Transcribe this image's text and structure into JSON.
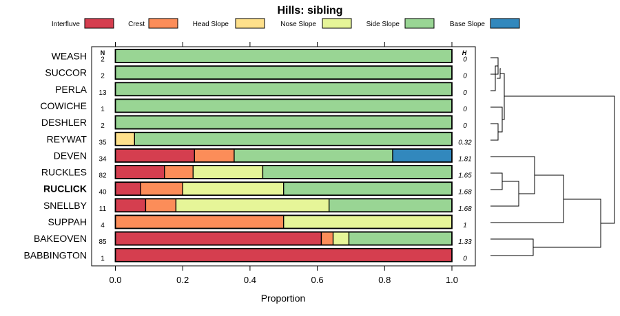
{
  "chart_data": {
    "type": "bar",
    "stacked": true,
    "orientation": "horizontal",
    "title": "Hills: sibling",
    "xlabel": "Proportion",
    "xlim": [
      0,
      1
    ],
    "xticks": [
      "0.0",
      "0.2",
      "0.4",
      "0.6",
      "0.8",
      "1.0"
    ],
    "n_header": "N",
    "h_header": "H",
    "highlight": "RUCLICK",
    "legend": [
      {
        "name": "Interfluve",
        "color": "#d53e4f"
      },
      {
        "name": "Crest",
        "color": "#fc8d59"
      },
      {
        "name": "Head Slope",
        "color": "#fee08b"
      },
      {
        "name": "Nose Slope",
        "color": "#e6f598"
      },
      {
        "name": "Side Slope",
        "color": "#99d594"
      },
      {
        "name": "Base Slope",
        "color": "#3288bd"
      }
    ],
    "categories": [
      "WEASH",
      "SUCCOR",
      "PERLA",
      "COWICHE",
      "DESHLER",
      "REYWAT",
      "DEVEN",
      "RUCKLES",
      "RUCLICK",
      "SNELLBY",
      "SUPPAH",
      "BAKEOVEN",
      "BABBINGTON"
    ],
    "n": [
      "2",
      "2",
      "13",
      "1",
      "2",
      "35",
      "34",
      "82",
      "40",
      "11",
      "4",
      "85",
      "1"
    ],
    "h": [
      "0",
      "0",
      "0",
      "0",
      "0",
      "0.32",
      "1.81",
      "1.65",
      "1.68",
      "1.68",
      "1",
      "1.33",
      "0"
    ],
    "series": [
      {
        "name": "Interfluve",
        "values": [
          0,
          0,
          0,
          0,
          0,
          0,
          0.235,
          0.146,
          0.075,
          0.09,
          0,
          0.612,
          1.0
        ]
      },
      {
        "name": "Crest",
        "values": [
          0,
          0,
          0,
          0,
          0,
          0,
          0.118,
          0.085,
          0.125,
          0.09,
          0.5,
          0.035,
          0
        ]
      },
      {
        "name": "Head Slope",
        "values": [
          0,
          0,
          0,
          0,
          0,
          0.057,
          0,
          0,
          0,
          0,
          0,
          0,
          0
        ]
      },
      {
        "name": "Nose Slope",
        "values": [
          0,
          0,
          0,
          0,
          0,
          0,
          0,
          0.207,
          0.3,
          0.455,
          0.5,
          0.047,
          0
        ]
      },
      {
        "name": "Side Slope",
        "values": [
          1.0,
          1.0,
          1.0,
          1.0,
          1.0,
          0.943,
          0.471,
          0.562,
          0.5,
          0.365,
          0,
          0.306,
          0
        ]
      },
      {
        "name": "Base Slope",
        "values": [
          0,
          0,
          0,
          0,
          0,
          0,
          0.176,
          0,
          0,
          0,
          0,
          0,
          0
        ]
      }
    ]
  }
}
